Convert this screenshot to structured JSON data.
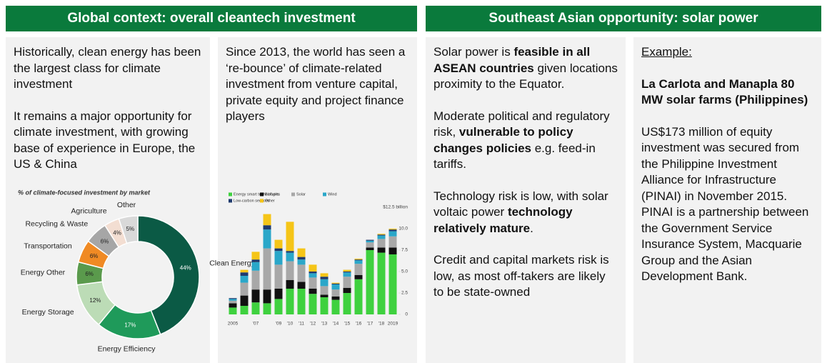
{
  "headers": [
    "Global context: overall cleantech investment",
    "Southeast Asian opportunity: solar power"
  ],
  "panels": [
    {
      "paragraphs": [
        [
          {
            "text": "Historically, clean energy has been the largest class for climate investment"
          }
        ],
        [
          {
            "text": "It remains a major opportunity for climate investment, with growing base of experience in Europe, the US & China"
          }
        ]
      ]
    },
    {
      "paragraphs": [
        [
          {
            "text": "Since 2013, the world has seen a ‘re-bounce’ of climate-related investment from venture capital, private equity and project finance players"
          }
        ]
      ]
    },
    {
      "paragraphs": [
        [
          {
            "text": "Solar power is "
          },
          {
            "text": "feasible in all ASEAN countries",
            "bold": true
          },
          {
            "text": " given locations proximity to the Equator."
          }
        ],
        [
          {
            "text": "Moderate political and regulatory risk, "
          },
          {
            "text": "vulnerable to policy changes policies",
            "bold": true
          },
          {
            "text": " e.g. feed-in tariffs."
          }
        ],
        [
          {
            "text": "Technology risk is low, with solar voltaic power "
          },
          {
            "text": "technology relatively mature",
            "bold": true
          },
          {
            "text": "."
          }
        ],
        [
          {
            "text": "Credit and capital markets risk is low, as most off-takers are likely to be state-owned"
          }
        ]
      ]
    },
    {
      "paragraphs": [
        [
          {
            "text": "Example:",
            "underline": true
          }
        ],
        [
          {
            "text": "La Carlota and Manapla 80 MW solar farms (Philippines)",
            "bold": true
          }
        ],
        [
          {
            "text": "US$173 million of equity investment was secured from the Philippine Investment Alliance for Infrastructure (PINAI) in November 2015. PINAI is a partnership between the Government Service Insurance System, Macquarie Group and the Asian Development Bank."
          }
        ]
      ]
    }
  ],
  "chart_data": [
    {
      "type": "donut",
      "title": "% of climate-focused investment by market",
      "categories": [
        "Clean Energy",
        "Energy Efficiency",
        "Energy Storage",
        "Energy Other",
        "Transportation",
        "Recycling & Waste",
        "Agriculture",
        "Other"
      ],
      "values": [
        44,
        17,
        12,
        6,
        6,
        6,
        4,
        5
      ],
      "value_labels": [
        "44%",
        "17%",
        "12%",
        "6%",
        "6%",
        "6%",
        "4%",
        "5%"
      ],
      "colors": [
        "#0b5a45",
        "#1f9a5a",
        "#bcdcb6",
        "#5a9a4c",
        "#f08a24",
        "#a6a6a6",
        "#f3ded2",
        "#d9d9d9"
      ]
    },
    {
      "type": "bar",
      "stacked": true,
      "categories": [
        "2005",
        null,
        "'07",
        null,
        "'09",
        "'10",
        "'11",
        "'12",
        "'13",
        "'14",
        "'15",
        "'16",
        "'17",
        "'18",
        "2019"
      ],
      "series": [
        {
          "name": "Energy smart technologies",
          "color": "#3fd13f",
          "values": [
            0.8,
            1.0,
            1.4,
            1.3,
            1.8,
            3.0,
            3.0,
            2.4,
            2.0,
            1.7,
            2.5,
            4.1,
            7.5,
            7.2,
            7.0
          ]
        },
        {
          "name": "Biofuels",
          "color": "#111111",
          "values": [
            0.5,
            1.2,
            1.5,
            1.6,
            1.2,
            1.0,
            0.8,
            0.6,
            0.3,
            0.4,
            0.6,
            0.5,
            0.3,
            0.6,
            0.8
          ]
        },
        {
          "name": "Solar",
          "color": "#a8a8a8",
          "values": [
            0.3,
            1.5,
            2.2,
            4.8,
            2.8,
            2.2,
            2.0,
            1.3,
            1.0,
            0.8,
            1.3,
            1.3,
            0.6,
            1.0,
            1.3
          ]
        },
        {
          "name": "Wind",
          "color": "#2aa7c9",
          "values": [
            0.2,
            0.8,
            1.0,
            2.2,
            1.6,
            1.0,
            0.6,
            0.5,
            0.8,
            0.6,
            0.5,
            0.4,
            0.2,
            0.4,
            0.6
          ]
        },
        {
          "name": "Low-carbon services",
          "color": "#1f3a6e",
          "values": [
            0.1,
            0.4,
            0.3,
            0.5,
            0.3,
            0.2,
            0.3,
            0.2,
            0.3,
            0.1,
            0.1,
            0.1,
            0.1,
            0.1,
            0.2
          ]
        },
        {
          "name": "Other",
          "color": "#f5c518",
          "values": [
            0,
            0.3,
            0.9,
            1.3,
            1.0,
            3.4,
            1.0,
            0.8,
            0.4,
            0.1,
            0.2,
            0.1,
            0,
            0.1,
            0.1
          ]
        }
      ],
      "ylim": [
        0,
        12.5
      ],
      "yticks": [
        0,
        2.5,
        {
          "value": 5,
          "label": "5.0"
        },
        7.5,
        {
          "value": 10,
          "label": "10.0"
        },
        {
          "value": 12.5,
          "label": "$12.5 billion"
        }
      ]
    }
  ]
}
